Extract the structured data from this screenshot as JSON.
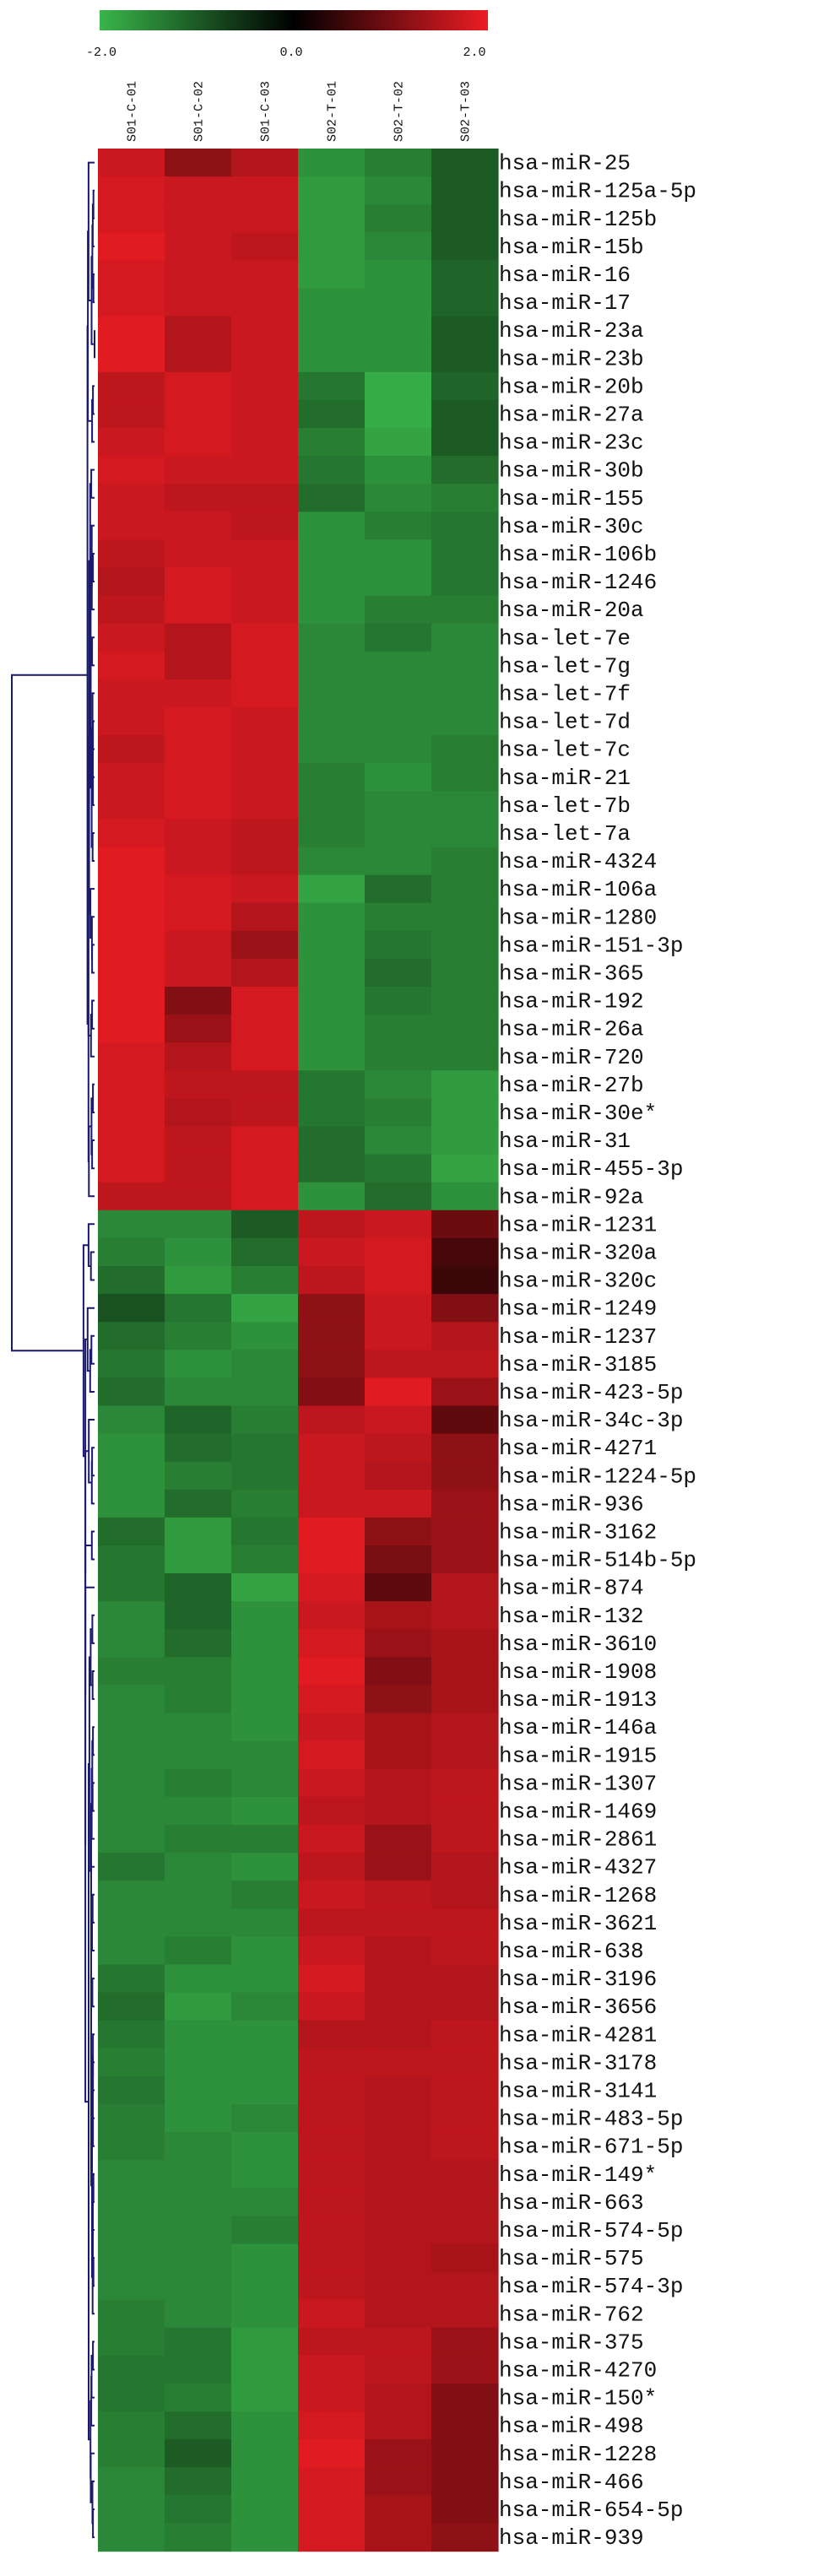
{
  "chart_data": {
    "type": "heatmap",
    "title": "",
    "xlabel": "",
    "ylabel": "",
    "color_scale": {
      "min": -2.0,
      "mid": 0.0,
      "max": 2.0,
      "tick_labels": [
        "-2.0",
        "0.0",
        "2.0"
      ],
      "low_color": "#39b54a",
      "mid_color": "#000000",
      "high_color": "#ed1c24"
    },
    "columns": [
      "S01-C-01",
      "S01-C-02",
      "S01-C-03",
      "S02-T-01",
      "S02-T-02",
      "S02-T-03"
    ],
    "rows": [
      "hsa-miR-25",
      "hsa-miR-125a-5p",
      "hsa-miR-125b",
      "hsa-miR-15b",
      "hsa-miR-16",
      "hsa-miR-17",
      "hsa-miR-23a",
      "hsa-miR-23b",
      "hsa-miR-20b",
      "hsa-miR-27a",
      "hsa-miR-23c",
      "hsa-miR-30b",
      "hsa-miR-155",
      "hsa-miR-30c",
      "hsa-miR-106b",
      "hsa-miR-1246",
      "hsa-miR-20a",
      "hsa-let-7e",
      "hsa-let-7g",
      "hsa-let-7f",
      "hsa-let-7d",
      "hsa-let-7c",
      "hsa-miR-21",
      "hsa-let-7b",
      "hsa-let-7a",
      "hsa-miR-4324",
      "hsa-miR-106a",
      "hsa-miR-1280",
      "hsa-miR-151-3p",
      "hsa-miR-365",
      "hsa-miR-192",
      "hsa-miR-26a",
      "hsa-miR-720",
      "hsa-miR-27b",
      "hsa-miR-30e*",
      "hsa-miR-31",
      "hsa-miR-455-3p",
      "hsa-miR-92a",
      "hsa-miR-1231",
      "hsa-miR-320a",
      "hsa-miR-320c",
      "hsa-miR-1249",
      "hsa-miR-1237",
      "hsa-miR-3185",
      "hsa-miR-423-5p",
      "hsa-miR-34c-3p",
      "hsa-miR-4271",
      "hsa-miR-1224-5p",
      "hsa-miR-936",
      "hsa-miR-3162",
      "hsa-miR-514b-5p",
      "hsa-miR-874",
      "hsa-miR-132",
      "hsa-miR-3610",
      "hsa-miR-1908",
      "hsa-miR-1913",
      "hsa-miR-146a",
      "hsa-miR-1915",
      "hsa-miR-1307",
      "hsa-miR-1469",
      "hsa-miR-2861",
      "hsa-miR-4327",
      "hsa-miR-1268",
      "hsa-miR-3621",
      "hsa-miR-638",
      "hsa-miR-3196",
      "hsa-miR-3656",
      "hsa-miR-4281",
      "hsa-miR-3178",
      "hsa-miR-3141",
      "hsa-miR-483-5p",
      "hsa-miR-671-5p",
      "hsa-miR-149*",
      "hsa-miR-663",
      "hsa-miR-574-5p",
      "hsa-miR-575",
      "hsa-miR-574-3p",
      "hsa-miR-762",
      "hsa-miR-375",
      "hsa-miR-4270",
      "hsa-miR-150*",
      "hsa-miR-498",
      "hsa-miR-1228",
      "hsa-miR-466",
      "hsa-miR-654-5p",
      "hsa-miR-939"
    ],
    "values": [
      [
        1.7,
        1.2,
        1.5,
        -1.6,
        -1.4,
        -1.0
      ],
      [
        1.8,
        1.7,
        1.7,
        -1.7,
        -1.5,
        -1.0
      ],
      [
        1.8,
        1.7,
        1.7,
        -1.7,
        -1.4,
        -1.0
      ],
      [
        1.9,
        1.7,
        1.6,
        -1.7,
        -1.5,
        -1.0
      ],
      [
        1.8,
        1.7,
        1.7,
        -1.7,
        -1.6,
        -1.1
      ],
      [
        1.8,
        1.7,
        1.7,
        -1.6,
        -1.6,
        -1.1
      ],
      [
        1.9,
        1.5,
        1.7,
        -1.6,
        -1.6,
        -1.0
      ],
      [
        1.9,
        1.5,
        1.7,
        -1.6,
        -1.6,
        -1.0
      ],
      [
        1.6,
        1.8,
        1.7,
        -1.3,
        -1.9,
        -1.1
      ],
      [
        1.6,
        1.8,
        1.7,
        -1.2,
        -1.9,
        -1.0
      ],
      [
        1.7,
        1.8,
        1.7,
        -1.4,
        -1.8,
        -1.0
      ],
      [
        1.8,
        1.7,
        1.7,
        -1.3,
        -1.6,
        -1.2
      ],
      [
        1.7,
        1.6,
        1.6,
        -1.2,
        -1.5,
        -1.4
      ],
      [
        1.7,
        1.7,
        1.6,
        -1.6,
        -1.4,
        -1.3
      ],
      [
        1.6,
        1.7,
        1.7,
        -1.6,
        -1.6,
        -1.3
      ],
      [
        1.5,
        1.8,
        1.7,
        -1.6,
        -1.6,
        -1.3
      ],
      [
        1.6,
        1.8,
        1.7,
        -1.6,
        -1.4,
        -1.4
      ],
      [
        1.7,
        1.5,
        1.8,
        -1.5,
        -1.3,
        -1.5
      ],
      [
        1.8,
        1.5,
        1.8,
        -1.5,
        -1.5,
        -1.5
      ],
      [
        1.7,
        1.7,
        1.8,
        -1.5,
        -1.5,
        -1.5
      ],
      [
        1.7,
        1.8,
        1.7,
        -1.5,
        -1.5,
        -1.5
      ],
      [
        1.6,
        1.8,
        1.7,
        -1.5,
        -1.5,
        -1.4
      ],
      [
        1.7,
        1.8,
        1.7,
        -1.4,
        -1.6,
        -1.4
      ],
      [
        1.7,
        1.8,
        1.7,
        -1.4,
        -1.5,
        -1.5
      ],
      [
        1.8,
        1.7,
        1.6,
        -1.4,
        -1.5,
        -1.5
      ],
      [
        1.9,
        1.7,
        1.6,
        -1.5,
        -1.5,
        -1.4
      ],
      [
        1.9,
        1.8,
        1.7,
        -1.8,
        -1.2,
        -1.4
      ],
      [
        1.9,
        1.8,
        1.5,
        -1.6,
        -1.4,
        -1.4
      ],
      [
        1.9,
        1.7,
        1.3,
        -1.6,
        -1.3,
        -1.4
      ],
      [
        1.9,
        1.7,
        1.5,
        -1.6,
        -1.2,
        -1.4
      ],
      [
        1.9,
        1.1,
        1.8,
        -1.6,
        -1.3,
        -1.4
      ],
      [
        1.9,
        1.3,
        1.8,
        -1.6,
        -1.4,
        -1.4
      ],
      [
        1.8,
        1.5,
        1.8,
        -1.6,
        -1.4,
        -1.4
      ],
      [
        1.8,
        1.6,
        1.6,
        -1.3,
        -1.5,
        -1.7
      ],
      [
        1.8,
        1.5,
        1.6,
        -1.3,
        -1.4,
        -1.7
      ],
      [
        1.8,
        1.6,
        1.8,
        -1.2,
        -1.5,
        -1.7
      ],
      [
        1.8,
        1.6,
        1.8,
        -1.2,
        -1.3,
        -1.8
      ],
      [
        1.6,
        1.6,
        1.8,
        -1.6,
        -1.2,
        -1.6
      ],
      [
        -1.5,
        -1.5,
        -1.0,
        1.6,
        1.7,
        0.9
      ],
      [
        -1.4,
        -1.6,
        -1.2,
        1.7,
        1.8,
        0.6
      ],
      [
        -1.2,
        -1.7,
        -1.4,
        1.6,
        1.8,
        0.5
      ],
      [
        -0.9,
        -1.3,
        -1.8,
        1.2,
        1.7,
        1.1
      ],
      [
        -1.2,
        -1.4,
        -1.6,
        1.2,
        1.7,
        1.5
      ],
      [
        -1.3,
        -1.6,
        -1.5,
        1.2,
        1.6,
        1.6
      ],
      [
        -1.2,
        -1.5,
        -1.5,
        1.1,
        1.9,
        1.3
      ],
      [
        -1.5,
        -1.1,
        -1.4,
        1.6,
        1.7,
        0.8
      ],
      [
        -1.6,
        -1.2,
        -1.3,
        1.7,
        1.6,
        1.2
      ],
      [
        -1.6,
        -1.4,
        -1.3,
        1.7,
        1.5,
        1.2
      ],
      [
        -1.6,
        -1.2,
        -1.4,
        1.7,
        1.7,
        1.3
      ],
      [
        -1.2,
        -1.7,
        -1.3,
        1.9,
        1.2,
        1.3
      ],
      [
        -1.3,
        -1.7,
        -1.4,
        1.9,
        1.0,
        1.3
      ],
      [
        -1.3,
        -1.1,
        -1.8,
        1.8,
        0.8,
        1.5
      ],
      [
        -1.5,
        -1.1,
        -1.6,
        1.7,
        1.4,
        1.5
      ],
      [
        -1.5,
        -1.2,
        -1.6,
        1.8,
        1.3,
        1.4
      ],
      [
        -1.4,
        -1.4,
        -1.6,
        1.9,
        1.1,
        1.4
      ],
      [
        -1.5,
        -1.4,
        -1.6,
        1.8,
        1.2,
        1.4
      ],
      [
        -1.5,
        -1.5,
        -1.6,
        1.7,
        1.4,
        1.5
      ],
      [
        -1.5,
        -1.5,
        -1.5,
        1.8,
        1.4,
        1.5
      ],
      [
        -1.5,
        -1.4,
        -1.5,
        1.7,
        1.5,
        1.6
      ],
      [
        -1.5,
        -1.5,
        -1.6,
        1.6,
        1.5,
        1.6
      ],
      [
        -1.5,
        -1.4,
        -1.4,
        1.7,
        1.3,
        1.6
      ],
      [
        -1.3,
        -1.5,
        -1.6,
        1.6,
        1.3,
        1.5
      ],
      [
        -1.5,
        -1.5,
        -1.4,
        1.7,
        1.6,
        1.5
      ],
      [
        -1.5,
        -1.5,
        -1.5,
        1.6,
        1.6,
        1.6
      ],
      [
        -1.5,
        -1.4,
        -1.6,
        1.7,
        1.5,
        1.6
      ],
      [
        -1.3,
        -1.6,
        -1.6,
        1.8,
        1.5,
        1.5
      ],
      [
        -1.2,
        -1.7,
        -1.5,
        1.7,
        1.5,
        1.5
      ],
      [
        -1.3,
        -1.6,
        -1.6,
        1.5,
        1.5,
        1.6
      ],
      [
        -1.4,
        -1.6,
        -1.6,
        1.6,
        1.6,
        1.6
      ],
      [
        -1.3,
        -1.6,
        -1.6,
        1.6,
        1.5,
        1.6
      ],
      [
        -1.4,
        -1.6,
        -1.5,
        1.6,
        1.5,
        1.6
      ],
      [
        -1.4,
        -1.5,
        -1.6,
        1.6,
        1.5,
        1.6
      ],
      [
        -1.5,
        -1.5,
        -1.6,
        1.6,
        1.5,
        1.5
      ],
      [
        -1.5,
        -1.5,
        -1.5,
        1.6,
        1.5,
        1.5
      ],
      [
        -1.5,
        -1.5,
        -1.4,
        1.6,
        1.5,
        1.5
      ],
      [
        -1.5,
        -1.5,
        -1.6,
        1.6,
        1.5,
        1.4
      ],
      [
        -1.5,
        -1.5,
        -1.6,
        1.6,
        1.5,
        1.5
      ],
      [
        -1.4,
        -1.5,
        -1.6,
        1.7,
        1.5,
        1.5
      ],
      [
        -1.4,
        -1.3,
        -1.7,
        1.6,
        1.6,
        1.3
      ],
      [
        -1.3,
        -1.3,
        -1.7,
        1.7,
        1.6,
        1.3
      ],
      [
        -1.3,
        -1.4,
        -1.7,
        1.7,
        1.5,
        1.1
      ],
      [
        -1.4,
        -1.2,
        -1.6,
        1.8,
        1.5,
        1.1
      ],
      [
        -1.4,
        -1.0,
        -1.6,
        1.9,
        1.3,
        1.1
      ],
      [
        -1.5,
        -1.2,
        -1.6,
        1.8,
        1.3,
        1.1
      ],
      [
        -1.5,
        -1.3,
        -1.6,
        1.8,
        1.4,
        1.1
      ],
      [
        -1.5,
        -1.4,
        -1.6,
        1.8,
        1.4,
        1.2
      ]
    ]
  }
}
